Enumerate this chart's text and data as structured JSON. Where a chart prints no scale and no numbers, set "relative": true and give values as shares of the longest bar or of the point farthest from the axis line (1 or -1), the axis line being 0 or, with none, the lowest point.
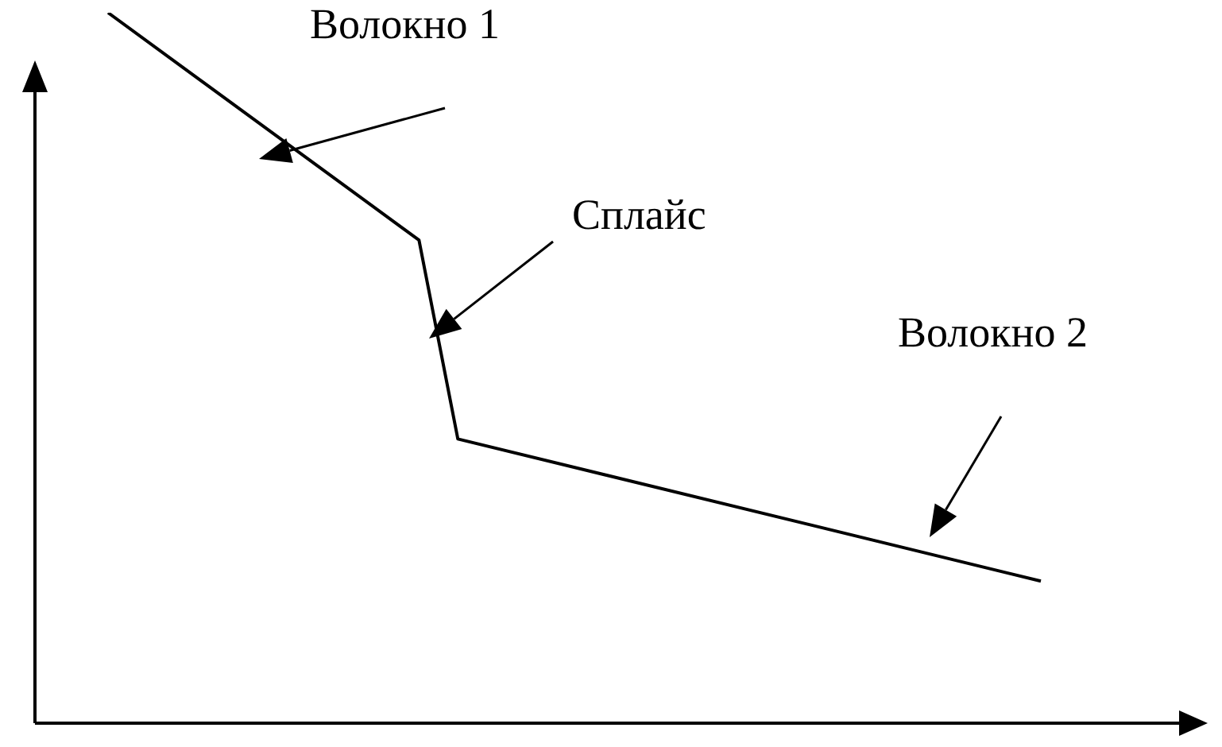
{
  "chart_data": {
    "type": "line",
    "relative": true,
    "categories": [
      null,
      null,
      null,
      null,
      null,
      null,
      null,
      null,
      null,
      null,
      null,
      null,
      null,
      null,
      null,
      null,
      null,
      null,
      null,
      null,
      null,
      null,
      null,
      null,
      null
    ],
    "series": [
      {
        "color": "#000000",
        "values": [
          1,
          null,
          null,
          null,
          null,
          null,
          null,
          null,
          0.68,
          0.4,
          null,
          null,
          null,
          null,
          null,
          null,
          null,
          null,
          null,
          null,
          null,
          null,
          null,
          null,
          0.2
        ]
      }
    ],
    "annotations": [
      "Волокно 1",
      "Сплайс",
      "Волокно 2"
    ],
    "marker": "none",
    "legend": false
  }
}
